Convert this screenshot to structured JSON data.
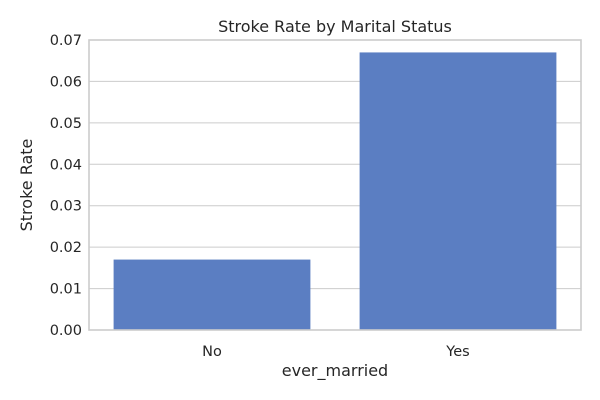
{
  "chart_data": {
    "type": "bar",
    "title": "Stroke Rate by Marital Status",
    "xlabel": "ever_married",
    "ylabel": "Stroke Rate",
    "categories": [
      "No",
      "Yes"
    ],
    "values": [
      0.017,
      0.067
    ],
    "ylim": [
      0,
      0.07
    ],
    "yticks": [
      "0.00",
      "0.01",
      "0.02",
      "0.03",
      "0.04",
      "0.05",
      "0.06",
      "0.07"
    ],
    "bar_color": "#5b7ec2",
    "grid": true,
    "grid_axis": "y",
    "legend": "none"
  }
}
